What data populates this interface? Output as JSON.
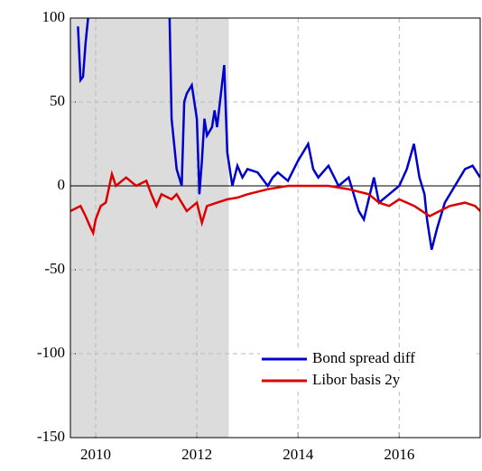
{
  "chart_data": {
    "type": "line",
    "xlim": [
      2009.5,
      2017.6
    ],
    "xticks": [
      2010,
      2012,
      2014,
      2016
    ],
    "ylim": [
      -150,
      100
    ],
    "yticks": [
      -150,
      -100,
      -50,
      0,
      50,
      100
    ],
    "grid": true,
    "zero_line": true,
    "shaded_region": [
      2009.5,
      2012.63
    ],
    "shade_color": "#dcdcdc",
    "legend": "lower right",
    "series": [
      {
        "name": "Bond spread diff",
        "color": "#0000cc",
        "x": [
          2009.65,
          2009.7,
          2009.75,
          2009.8,
          2009.85,
          2010.0,
          2011.46,
          2011.5,
          2011.55,
          2011.6,
          2011.7,
          2011.75,
          2011.8,
          2011.9,
          2012.0,
          2012.05,
          2012.1,
          2012.15,
          2012.2,
          2012.3,
          2012.35,
          2012.4,
          2012.54,
          2012.6,
          2012.7,
          2012.8,
          2012.9,
          2013.0,
          2013.2,
          2013.4,
          2013.5,
          2013.6,
          2013.8,
          2014.0,
          2014.2,
          2014.3,
          2014.4,
          2014.6,
          2014.8,
          2015.0,
          2015.2,
          2015.3,
          2015.5,
          2015.6,
          2015.8,
          2016.0,
          2016.15,
          2016.29,
          2016.4,
          2016.5,
          2016.55,
          2016.64,
          2016.75,
          2016.9,
          2017.1,
          2017.3,
          2017.45,
          2017.6
        ],
        "values": [
          95,
          63,
          65,
          85,
          100,
          null,
          100,
          40,
          25,
          10,
          0,
          50,
          55,
          60,
          40,
          -5,
          15,
          40,
          30,
          35,
          45,
          35,
          72,
          20,
          0,
          12,
          5,
          10,
          8,
          0,
          5,
          8,
          3,
          15,
          25,
          10,
          5,
          12,
          0,
          5,
          -15,
          -20,
          5,
          -10,
          -5,
          0,
          10,
          25,
          5,
          -5,
          -20,
          -38,
          -25,
          -10,
          0,
          10,
          12,
          5
        ]
      },
      {
        "name": "Libor basis 2y",
        "color": "#dd0000",
        "x": [
          2009.5,
          2009.7,
          2009.8,
          2009.9,
          2009.95,
          2010.0,
          2010.1,
          2010.2,
          2010.32,
          2010.4,
          2010.6,
          2010.8,
          2011.0,
          2011.1,
          2011.2,
          2011.3,
          2011.5,
          2011.6,
          2011.8,
          2012.0,
          2012.1,
          2012.2,
          2012.4,
          2012.6,
          2012.8,
          2013.0,
          2013.4,
          2013.8,
          2014.2,
          2014.6,
          2015.0,
          2015.4,
          2015.6,
          2015.8,
          2016.0,
          2016.3,
          2016.6,
          2016.8,
          2017.0,
          2017.3,
          2017.5,
          2017.6
        ],
        "values": [
          -15,
          -12,
          -18,
          -25,
          -28,
          -20,
          -12,
          -10,
          7,
          0,
          5,
          0,
          3,
          -5,
          -12,
          -5,
          -8,
          -5,
          -15,
          -10,
          -22,
          -12,
          -10,
          -8,
          -7,
          -5,
          -2,
          0,
          0,
          0,
          -2,
          -5,
          -10,
          -12,
          -8,
          -12,
          -18,
          -15,
          -12,
          -10,
          -12,
          -15
        ]
      }
    ]
  }
}
